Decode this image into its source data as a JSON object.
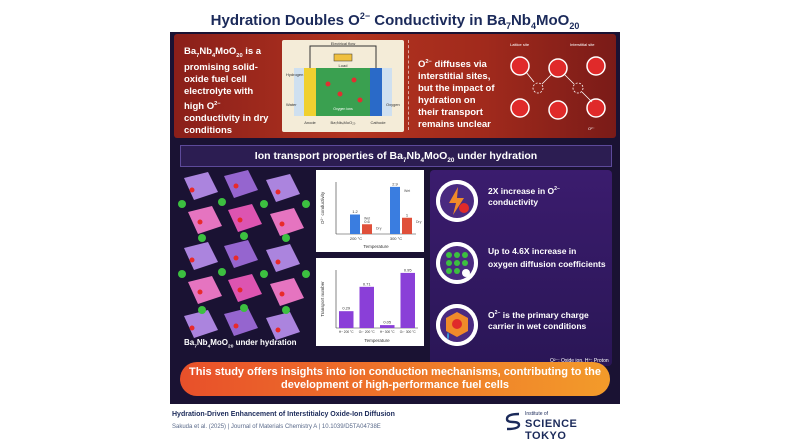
{
  "title": {
    "main": "Hydration Doubles O",
    "sup": "2−",
    "mid": " Conductivity in Ba",
    "sub1": "7",
    "nb": "Nb",
    "sub2": "4",
    "mo": "MoO",
    "sub3": "20"
  },
  "intro": {
    "a": "Ba",
    "s1": "7",
    "b": "Nb",
    "s2": "4",
    "c": "MoO",
    "s3": "20",
    "d": " is a promising solid-oxide fuel cell electrolyte with high O",
    "sup": "2−",
    "e": " conductivity in dry conditions"
  },
  "cell": {
    "electrical_flow": "Electrical flow",
    "load": "Load",
    "hydrogen": "Hydrogen",
    "water": "Water",
    "oxygen": "Oxygen",
    "oxygen_ion": "Oxygen ions",
    "anode": "Anode",
    "electrolyte": "Ba₇Nb₄MoO₂₀",
    "cathode": "Cathode"
  },
  "diffuse": {
    "a": "O",
    "sup": "2−",
    "b": " diffuses via interstitial sites, but the impact of hydration on their transport remains unclear"
  },
  "diffuse_diagram": {
    "lattice": "Lattice site",
    "interstitial": "Interstitial site",
    "ion": "O²⁻"
  },
  "section": {
    "a": "Ion transport properties of Ba",
    "s1": "7",
    "b": "Nb",
    "s2": "4",
    "c": "MoO",
    "s3": "20",
    "d": " under hydration"
  },
  "structure_label": {
    "a": "Ba",
    "s1": "7",
    "b": "Nb",
    "s2": "4",
    "c": "MoO",
    "s3": "20",
    "d": " under hydration"
  },
  "chart_data": [
    {
      "type": "bar",
      "ylabel": "O²⁻ conductivity",
      "xlabel": "Temperature",
      "categories": [
        "200 °C",
        "300 °C"
      ],
      "series": [
        {
          "name": "Wet",
          "values": [
            1.2,
            2.9
          ]
        },
        {
          "name": "Dry",
          "values": [
            0.6,
            1.0
          ]
        }
      ],
      "value_labels": [
        "1.2",
        "0.6",
        "2.9",
        "1.0"
      ]
    },
    {
      "type": "bar",
      "ylabel": "Transport number",
      "xlabel": "Temperature",
      "ylim": [
        0,
        1.0
      ],
      "categories": [
        "H⁺ 200 °C",
        "O²⁻ 200 °C",
        "H⁺ 300 °C",
        "O²⁻ 300 °C"
      ],
      "values": [
        0.29,
        0.71,
        0.05,
        0.95
      ],
      "value_labels": [
        "0.29",
        "0.71",
        "0.05",
        "0.95"
      ]
    }
  ],
  "cards": [
    {
      "a": "2X increase in O",
      "sup": "2−",
      "b": " conductivity"
    },
    {
      "a": "Up to 4.6X increase in oxygen diffusion coefficients",
      "sup": "",
      "b": ""
    },
    {
      "a": "O",
      "sup": "2−",
      "b": " is the primary charge carrier in wet conditions"
    }
  ],
  "legend_note": "O²⁻: Oxide ion, H⁺: Proton",
  "conclusion": "This study offers insights into ion conduction mechanisms, contributing to the development of high-performance fuel cells",
  "footer": {
    "paper_title": "Hydration-Driven Enhancement of Interstitialcy Oxide-Ion Diffusion",
    "citation": "Sakuda et al. (2025) | Journal of Materials Chemistry A | 10.1039/D5TA04738E",
    "logo_small": "Institute of",
    "logo_big": "SCIENCE TOKYO"
  },
  "colors": {
    "accent_red": "#b2331f",
    "purple": "#8a3fd8",
    "blue": "#3a7de0",
    "orange": "#f08a2a",
    "wet": "#3a7de0",
    "dry": "#e0503a"
  }
}
